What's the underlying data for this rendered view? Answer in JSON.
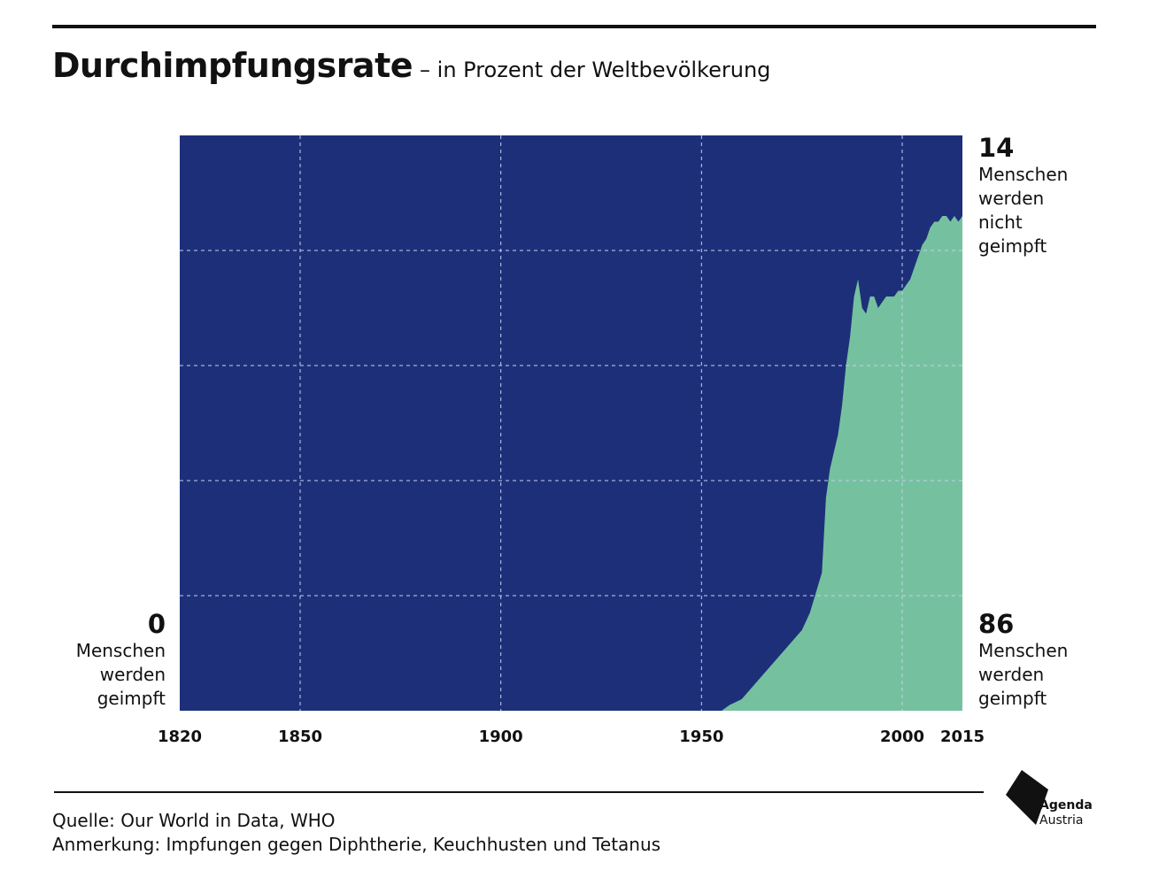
{
  "header": {
    "title": "Durchimpfungsrate",
    "subtitle": "– in Prozent der Weltbevölkerung"
  },
  "labels": {
    "left": {
      "value": "0",
      "line1": "Menschen",
      "line2": "werden",
      "line3": "geimpft"
    },
    "right_top": {
      "value": "14",
      "line1": "Menschen",
      "line2": "werden",
      "line3": "nicht",
      "line4": "geimpft"
    },
    "right_bottom": {
      "value": "86",
      "line1": "Menschen",
      "line2": "werden",
      "line3": "geimpft"
    }
  },
  "footer": {
    "source": "Quelle: Our World in Data, WHO",
    "note": "Anmerkung: Impfungen gegen Diphtherie, Keuchhusten und Tetanus"
  },
  "logo": {
    "line1": "Agenda",
    "line2": "Austria"
  },
  "colors": {
    "not_vaccinated": "#1e2f7a",
    "vaccinated": "#75c19f",
    "grid": "#c8d0ea",
    "text": "#111111"
  },
  "chart_data": {
    "type": "area",
    "title": "Durchimpfungsrate",
    "subtitle": "– in Prozent der Weltbevölkerung",
    "xlim": [
      1820,
      2015
    ],
    "ylim": [
      0,
      100
    ],
    "x_ticks": [
      1820,
      1850,
      1900,
      1950,
      2000,
      2015
    ],
    "y_gridlines": [
      20,
      40,
      60,
      80
    ],
    "grid": true,
    "series": [
      {
        "name": "Menschen werden geimpft",
        "x": [
          1820,
          1955,
          1957,
          1960,
          1965,
          1970,
          1975,
          1977,
          1980,
          1981,
          1982,
          1983,
          1984,
          1985,
          1986,
          1987,
          1988,
          1989,
          1990,
          1991,
          1992,
          1993,
          1994,
          1995,
          1996,
          1997,
          1998,
          1999,
          2000,
          2001,
          2002,
          2003,
          2004,
          2005,
          2006,
          2007,
          2008,
          2009,
          2010,
          2011,
          2012,
          2013,
          2014,
          2015
        ],
        "y": [
          0,
          0,
          1,
          2,
          6,
          10,
          14,
          17,
          24,
          37,
          42,
          45,
          48,
          53,
          60,
          65,
          72,
          75,
          70,
          69,
          72,
          72,
          70,
          71,
          72,
          72,
          72,
          73,
          73,
          74,
          75,
          77,
          79,
          81,
          82,
          84,
          85,
          85,
          86,
          86,
          85,
          86,
          85,
          86
        ]
      }
    ],
    "annotations": [
      {
        "text": "0 Menschen werden geimpft",
        "at": "left-bottom"
      },
      {
        "text": "14 Menschen werden nicht geimpft",
        "at": "right-top"
      },
      {
        "text": "86 Menschen werden geimpft",
        "at": "right-bottom"
      }
    ]
  }
}
